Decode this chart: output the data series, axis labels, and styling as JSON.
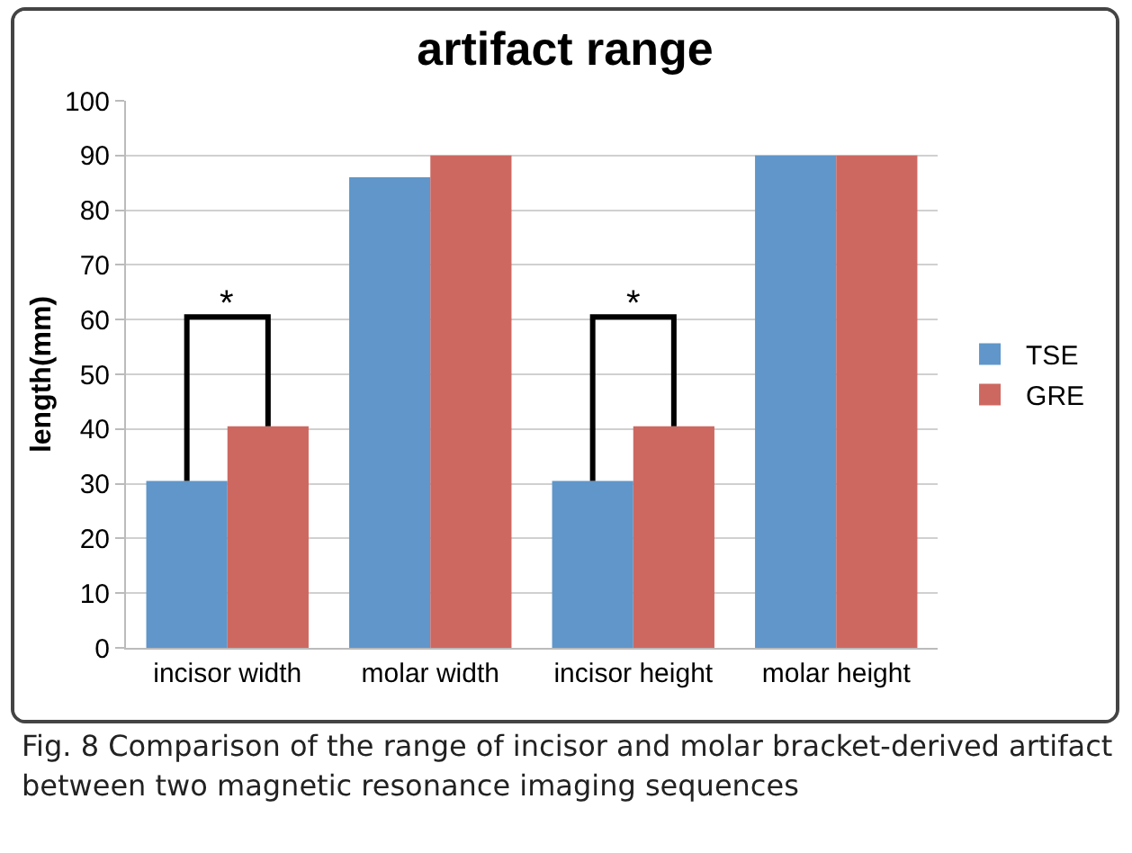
{
  "chart_data": {
    "type": "bar",
    "title": "artifact range",
    "ylabel": "length(mm)",
    "categories": [
      "incisor width",
      "molar width",
      "incisor height",
      "molar height"
    ],
    "series": [
      {
        "name": "TSE",
        "color": "#6096c9",
        "values": [
          30.5,
          86,
          30.5,
          90
        ]
      },
      {
        "name": "GRE",
        "color": "#cd6861",
        "values": [
          40.5,
          90,
          40.5,
          90
        ]
      }
    ],
    "ylim": [
      0,
      100
    ],
    "yticks": [
      0,
      10,
      20,
      30,
      40,
      50,
      60,
      70,
      80,
      90,
      100
    ],
    "grid": "y",
    "legend": "right",
    "annotations": [
      "*",
      "*",
      "Fig. 8 Comparison of the range of incisor and molar bracket-derived artifact between two magnetic resonance imaging sequences"
    ]
  }
}
